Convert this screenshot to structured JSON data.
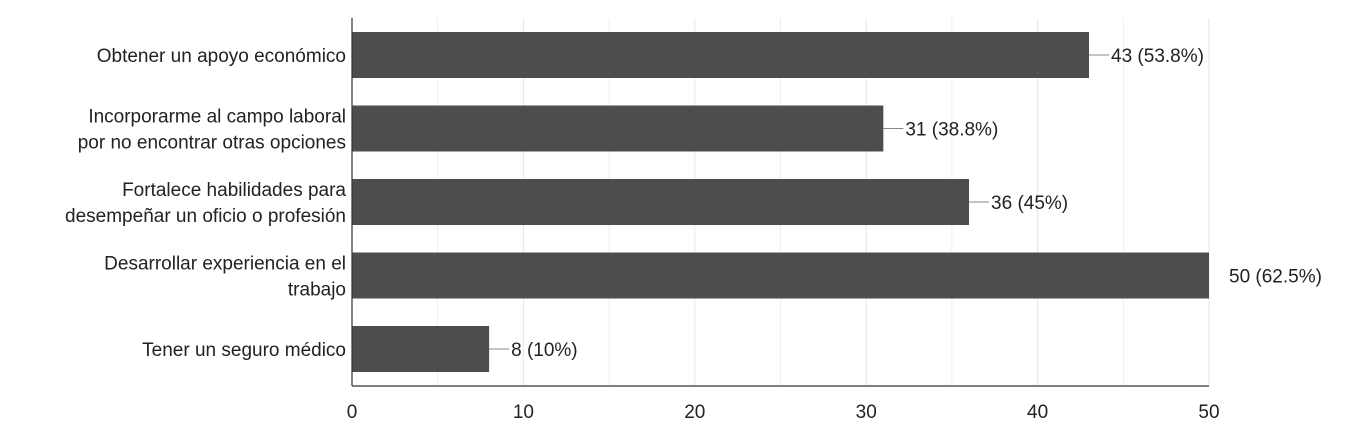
{
  "chart_data": {
    "type": "bar",
    "orientation": "horizontal",
    "categories": [
      [
        "Obtener un apoyo económico"
      ],
      [
        "Incorporarme al campo laboral",
        "por no encontrar otras opciones"
      ],
      [
        "Fortalece habilidades para",
        "desempeñar un oficio o profesión"
      ],
      [
        "Desarrollar experiencia en el",
        "trabajo"
      ],
      [
        "Tener un seguro médico"
      ]
    ],
    "values": [
      43,
      31,
      36,
      50,
      8
    ],
    "data_labels": [
      "43 (53.8%)",
      "31 (38.8%)",
      "36 (45%)",
      "50 (62.5%)",
      "8 (10%)"
    ],
    "xlim": [
      0,
      50
    ],
    "xticks": [
      0,
      10,
      20,
      30,
      40,
      50
    ],
    "grid": true,
    "colors": {
      "bar": "#4d4d4d",
      "grid": "#e6e6e6",
      "axis": "#333333",
      "text": "#222222"
    }
  }
}
